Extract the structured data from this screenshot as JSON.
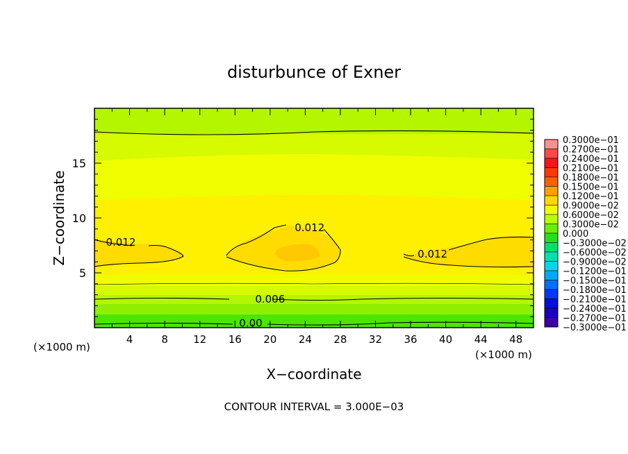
{
  "chart_data": {
    "type": "heatmap",
    "title": "disturbunce of Exner",
    "xlabel": "X−coordinate",
    "ylabel": "Z−coordinate",
    "x_unit_left": "(×1000 m)",
    "x_unit_right": "(×1000 m)",
    "footer": "CONTOUR INTERVAL = 3.000E−03",
    "xlim": [
      0,
      50
    ],
    "ylim": [
      0,
      20
    ],
    "x_ticks": [
      4,
      8,
      12,
      16,
      20,
      24,
      28,
      32,
      36,
      40,
      44,
      48
    ],
    "y_ticks": [
      5,
      10,
      15
    ],
    "contour_labels": [
      {
        "text": "0.012",
        "x": 3,
        "y": 7.8
      },
      {
        "text": "0.012",
        "x": 24.5,
        "y": 9.1
      },
      {
        "text": "0.012",
        "x": 38.5,
        "y": 6.7
      },
      {
        "text": "0.006",
        "x": 20,
        "y": 2.6
      },
      {
        "text": "0.00",
        "x": 17.8,
        "y": 0.4
      }
    ],
    "colorbar": {
      "labels": [
        "0.3000e−01",
        "0.2700e−01",
        "0.2400e−01",
        "0.2100e−01",
        "0.1800e−01",
        "0.1500e−01",
        "0.1200e−01",
        "0.9000e−02",
        "0.6000e−02",
        "0.3000e−02",
        "0.000",
        "−0.3000e−02",
        "−0.6000e−02",
        "−0.9000e−02",
        "−0.1200e−01",
        "−0.1500e−01",
        "−0.1800e−01",
        "−0.2100e−01",
        "−0.2400e−01",
        "−0.2700e−01",
        "−0.3000e−01"
      ],
      "colors": [
        "#ff9090",
        "#ff4848",
        "#f01818",
        "#ff3800",
        "#ff6000",
        "#ffa000",
        "#ffd800",
        "#f0ff00",
        "#b8ff00",
        "#68f000",
        "#20e020",
        "#00e070",
        "#00e0b0",
        "#00d8e8",
        "#00a8ff",
        "#0070ff",
        "#0038ff",
        "#0010e0",
        "#1800c0",
        "#4000a8"
      ]
    },
    "field_colors": {
      "c0": "#4ce600",
      "c1": "#8ef000",
      "c2": "#b4f500",
      "c3": "#d6fa00",
      "c4": "#f0ff00",
      "c5": "#fff000",
      "c6": "#ffdc00",
      "c7": "#ffc800"
    }
  }
}
